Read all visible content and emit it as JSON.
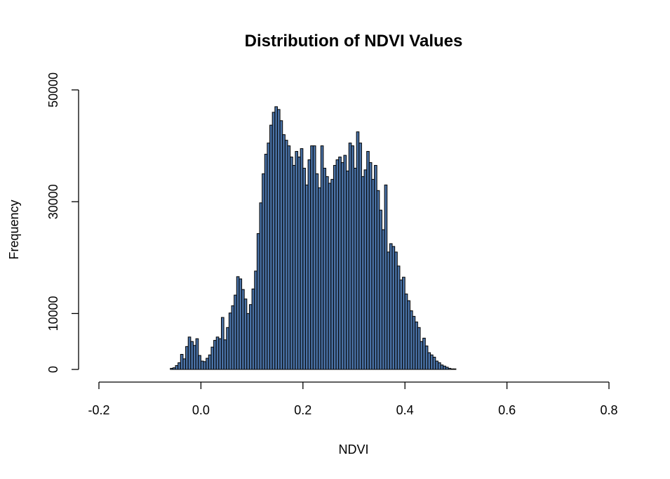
{
  "chart_data": {
    "type": "bar",
    "title": "Distribution of NDVI Values",
    "xlabel": "NDVI",
    "ylabel": "Frequency",
    "xlim": [
      -0.2,
      0.8
    ],
    "ylim": [
      0,
      50000
    ],
    "x_ticks": [
      "-0.2",
      "0.0",
      "0.2",
      "0.4",
      "0.6",
      "0.8"
    ],
    "y_ticks": [
      "0",
      "10000",
      "30000",
      "50000"
    ],
    "bar_color": "#4a72a6",
    "bin_start": -0.09,
    "bin_width": 0.005,
    "values": [
      0,
      0,
      0,
      0,
      0,
      0,
      200,
      300,
      700,
      1200,
      2700,
      1900,
      4100,
      5800,
      5000,
      4300,
      5500,
      2500,
      1500,
      1400,
      2000,
      2600,
      4000,
      5200,
      5800,
      5500,
      9300,
      5300,
      7500,
      10100,
      11400,
      13300,
      16600,
      16200,
      14300,
      12600,
      10000,
      11600,
      14400,
      17600,
      24300,
      29800,
      35000,
      38500,
      40500,
      43700,
      46000,
      47000,
      46500,
      44500,
      42000,
      41000,
      40000,
      38000,
      36500,
      39000,
      38000,
      39500,
      36000,
      33000,
      37500,
      40000,
      40000,
      35000,
      32500,
      40000,
      36000,
      34500,
      33300,
      34000,
      36500,
      37500,
      38000,
      37000,
      38300,
      35500,
      40500,
      40000,
      36000,
      42500,
      40500,
      34500,
      35700,
      39000,
      37000,
      34000,
      36500,
      32000,
      28500,
      25000,
      33000,
      21000,
      22500,
      22000,
      21000,
      18500,
      16000,
      16500,
      13500,
      12300,
      10500,
      9500,
      8500,
      7500,
      5000,
      5600,
      4200,
      3000,
      2600,
      2200,
      1500,
      1200,
      800,
      600,
      400,
      200,
      100,
      100,
      0,
      0,
      0,
      0,
      0,
      0,
      0,
      0
    ]
  }
}
